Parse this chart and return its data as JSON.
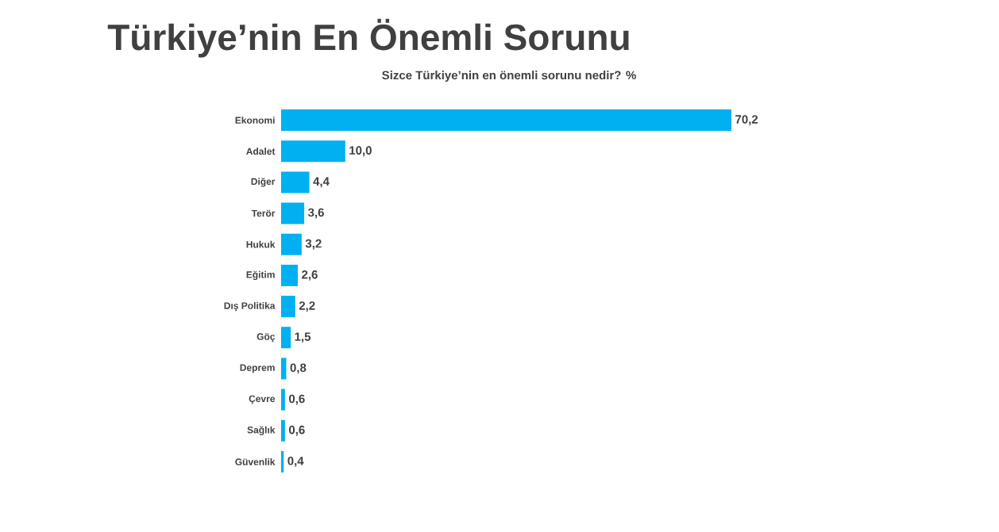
{
  "chart_data": {
    "type": "bar",
    "orientation": "horizontal",
    "title": "Türkiye’nin En Önemli Sorunu",
    "subtitle": "Sizce Türkiye’nin en önemli sorunu nedir? %",
    "categories": [
      "Ekonomi",
      "Adalet",
      "Diğer",
      "Terör",
      "Hukuk",
      "Eğitim",
      "Dış Politika",
      "Göç",
      "Deprem",
      "Çevre",
      "Sağlık",
      "Güvenlik"
    ],
    "values": [
      70.2,
      10.0,
      4.4,
      3.6,
      3.2,
      2.6,
      2.2,
      1.5,
      0.8,
      0.6,
      0.6,
      0.4
    ],
    "value_labels": [
      "70,2",
      "10,0",
      "4,4",
      "3,6",
      "3,2",
      "2,6",
      "2,2",
      "1,5",
      "0,8",
      "0,6",
      "0,6",
      "0,4"
    ],
    "color": "#00b0f0"
  }
}
